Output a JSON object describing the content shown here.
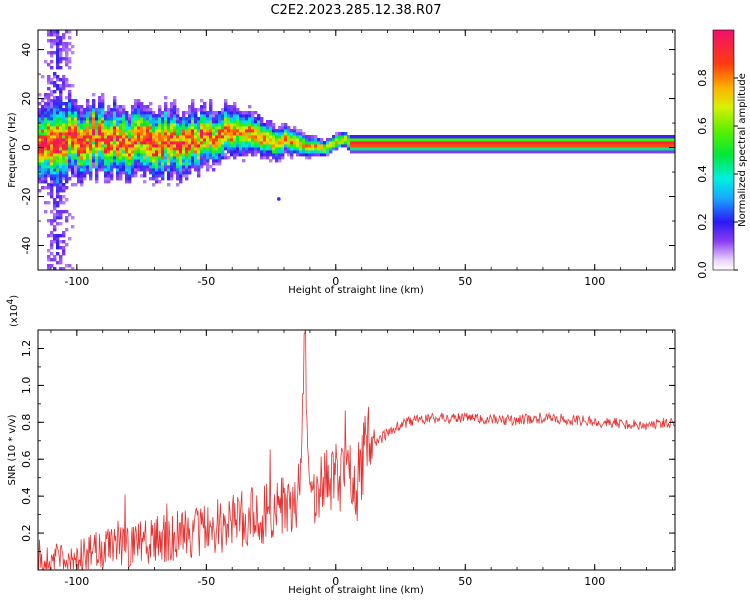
{
  "figure": {
    "title": "C2E2.2023.285.12.38.R07"
  },
  "chart_data": [
    {
      "type": "heatmap",
      "xlabel": "Height of straight line (km)",
      "ylabel": "Frequency (Hz)",
      "xlim": [
        -115,
        131
      ],
      "ylim": [
        -50,
        48
      ],
      "x_ticks": [
        "-100",
        "-50",
        "0",
        "50",
        "100"
      ],
      "x_tick_values": [
        -100,
        -50,
        0,
        50,
        100
      ],
      "y_ticks": [
        "40",
        "20",
        "0",
        "-20",
        "-40"
      ],
      "y_tick_values": [
        40,
        20,
        0,
        -20,
        -40
      ],
      "colorbar": {
        "label": "Normalized spectral amplitude",
        "range": [
          0,
          1
        ],
        "ticks": [
          "0.0",
          "0.2",
          "0.4",
          "0.6",
          "0.8"
        ],
        "tick_values": [
          0.0,
          0.2,
          0.4,
          0.6,
          0.8
        ],
        "colormap": "rainbow"
      },
      "ridge": {
        "x": [
          -115,
          -100,
          -90,
          -80,
          -70,
          -60,
          -55,
          -50,
          -45,
          -40,
          -35,
          -30,
          -25,
          -22,
          -20,
          -15,
          -12,
          -10,
          -8,
          -5,
          -2,
          0,
          3,
          5,
          10,
          20,
          40,
          60,
          80,
          100,
          120,
          131
        ],
        "y": [
          3,
          3,
          3,
          2,
          2,
          1,
          2,
          4,
          5,
          6,
          5,
          4,
          2,
          1,
          3,
          1,
          0,
          0,
          0,
          -1,
          1,
          2,
          3,
          1,
          1,
          1,
          1,
          1,
          1,
          1,
          1,
          1
        ]
      },
      "notable_points": [
        {
          "x": -22,
          "y": -21
        }
      ]
    },
    {
      "type": "line",
      "xlabel": "Height of straight line (km)",
      "ylabel": "SNR (10 * v/v)",
      "y_multiplier_label": "(x10",
      "y_multiplier_exp": "4",
      "xlim": [
        -115,
        131
      ],
      "ylim": [
        0,
        1.3
      ],
      "x_ticks": [
        "-100",
        "-50",
        "0",
        "50",
        "100"
      ],
      "x_tick_values": [
        -100,
        -50,
        0,
        50,
        100
      ],
      "y_ticks": [
        "0.2",
        "0.4",
        "0.6",
        "0.8",
        "1.0",
        "1.2"
      ],
      "y_tick_values": [
        0.2,
        0.4,
        0.6,
        0.8,
        1.0,
        1.2
      ],
      "series": [
        {
          "color": "#e8312f",
          "x": [
            -115,
            -110,
            -100,
            -90,
            -80,
            -70,
            -60,
            -50,
            -45,
            -40,
            -35,
            -30,
            -25,
            -20,
            -15,
            -13,
            -12,
            -10,
            -5,
            0,
            5,
            8,
            10,
            12,
            15,
            20,
            25,
            30,
            40,
            50,
            60,
            70,
            80,
            90,
            100,
            110,
            120,
            131
          ],
          "y": [
            0.02,
            0.04,
            0.07,
            0.1,
            0.12,
            0.15,
            0.18,
            0.2,
            0.22,
            0.24,
            0.27,
            0.28,
            0.3,
            0.32,
            0.33,
            0.6,
            1.28,
            0.38,
            0.42,
            0.47,
            0.55,
            0.38,
            0.58,
            0.64,
            0.68,
            0.74,
            0.78,
            0.81,
            0.82,
            0.82,
            0.81,
            0.81,
            0.82,
            0.81,
            0.8,
            0.79,
            0.78,
            0.8
          ]
        }
      ]
    }
  ]
}
